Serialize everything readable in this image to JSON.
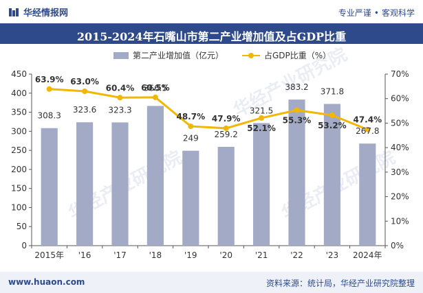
{
  "header": {
    "brand": "华经情报网",
    "tagline_left": "专业严谨",
    "tagline_sep": "•",
    "tagline_right": "客观科学"
  },
  "footer": {
    "website": "www.huaon.com",
    "source": "资料来源：统计局，华经产业研究院整理"
  },
  "colors": {
    "bar": "#a2aac6",
    "line": "#f2b705",
    "title_bg": "#2f4a8a",
    "brand": "#2e4a8c"
  },
  "chart_data": {
    "type": "bar",
    "title": "2015-2024年石嘴山市第二产业增加值及占GDP比重",
    "categories": [
      "2015年",
      "'16",
      "'17",
      "'18",
      "'19",
      "'20",
      "'21",
      "'22",
      "'23",
      "2024年"
    ],
    "series": [
      {
        "name": "第二产业增加值（亿元）",
        "type": "bar",
        "axis": "left",
        "values": [
          308.3,
          323.6,
          323.3,
          366.5,
          249,
          259.2,
          321.5,
          383.2,
          371.8,
          267.8
        ]
      },
      {
        "name": "占GDP比重（%）",
        "type": "line",
        "axis": "right",
        "values": [
          63.9,
          63.0,
          60.4,
          60.5,
          48.7,
          47.9,
          52.1,
          55.3,
          53.2,
          47.4
        ]
      }
    ],
    "bar_labels": [
      "308.3",
      "323.6",
      "323.3",
      "366.5",
      "249",
      "259.2",
      "321.5",
      "383.2",
      "371.8",
      "267.8"
    ],
    "line_labels": [
      "63.9%",
      "63.0%",
      "60.4%",
      "60.5%",
      "48.7%",
      "47.9%",
      "52.1%",
      "55.3%",
      "53.2%",
      "47.4%"
    ],
    "ylim_left": [
      0,
      450
    ],
    "yticks_left": [
      "0",
      "50",
      "100",
      "150",
      "200",
      "250",
      "300",
      "350",
      "400",
      "450"
    ],
    "ylim_right": [
      0,
      70
    ],
    "yticks_right": [
      "0%",
      "10%",
      "20%",
      "30%",
      "40%",
      "50%",
      "60%",
      "70%"
    ],
    "legend_position": "top",
    "grid": false
  }
}
